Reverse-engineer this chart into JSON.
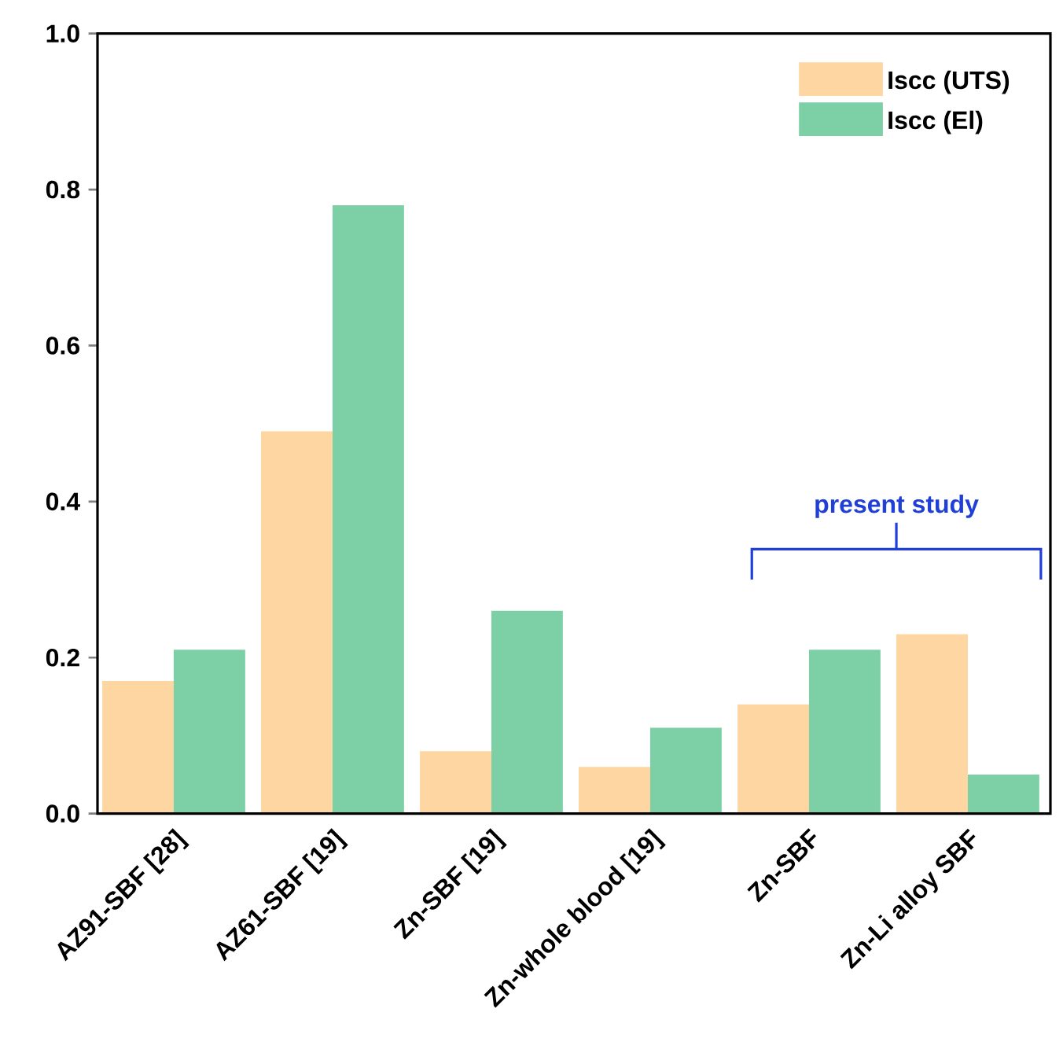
{
  "chart_data": {
    "type": "bar",
    "categories": [
      "AZ91-SBF [28]",
      "AZ61-SBF [19]",
      "Zn-SBF [19]",
      "Zn-whole blood [19]",
      "Zn-SBF",
      "Zn-Li alloy SBF"
    ],
    "series": [
      {
        "name": "Iscc (UTS)",
        "color": "#fdd6a2",
        "values": [
          0.17,
          0.49,
          0.08,
          0.06,
          0.14,
          0.23
        ]
      },
      {
        "name": "Iscc (El)",
        "color": "#7dcfa6",
        "values": [
          0.21,
          0.78,
          0.26,
          0.11,
          0.21,
          0.05
        ]
      }
    ],
    "ylim": [
      0,
      1.0
    ],
    "yticks": [
      {
        "value": 0,
        "label": "0.0"
      },
      0.2,
      0.4,
      0.6,
      0.8,
      {
        "value": 1,
        "label": "1.0"
      }
    ],
    "annotations": [
      "present study"
    ],
    "legend": "top right",
    "grid": false
  }
}
